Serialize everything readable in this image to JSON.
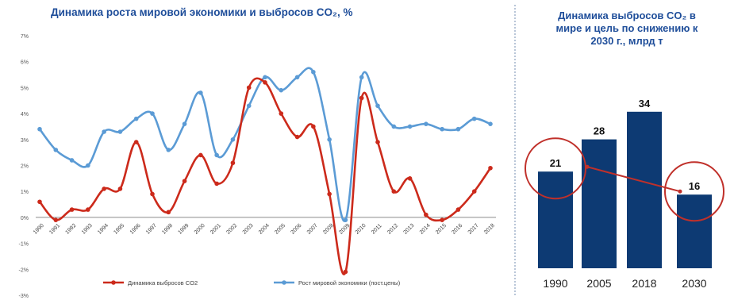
{
  "left": {
    "title": "Динамика роста мировой экономики и выбросов CO₂, %"
  },
  "right": {
    "title_lines": [
      "Динамика выбросов CO₂ в",
      "мире и цель по снижению к",
      "2030 г., млрд т"
    ]
  },
  "colors": {
    "emissions": "#cc2a1b",
    "growth": "#5b9bd5",
    "bar": "#0d3a73",
    "circle": "#c0302a",
    "title": "#1f4e9a"
  },
  "chart_data": [
    {
      "type": "line",
      "title": "Динамика роста мировой экономики и выбросов CO₂, %",
      "x": [
        "1990",
        "1991",
        "1992",
        "1993",
        "1994",
        "1995",
        "1996",
        "1997",
        "1998",
        "1999",
        "2000",
        "2001",
        "2002",
        "2003",
        "2004",
        "2005",
        "2006",
        "2007",
        "2008",
        "2009",
        "2010",
        "2011",
        "2012",
        "2013",
        "2014",
        "2015",
        "2016",
        "2017",
        "2018"
      ],
      "ylim": [
        -3,
        7
      ],
      "yticks": [
        "-3%",
        "-2%",
        "-1%",
        "0%",
        "1%",
        "2%",
        "3%",
        "4%",
        "5%",
        "6%",
        "7%"
      ],
      "legend_position": "bottom",
      "series": [
        {
          "name": "Динамика выбросов CO2",
          "values": [
            0.6,
            -0.1,
            0.3,
            0.3,
            1.1,
            1.1,
            2.9,
            0.9,
            0.2,
            1.4,
            2.4,
            1.3,
            2.1,
            5.0,
            5.2,
            4.0,
            3.1,
            3.5,
            0.9,
            -2.1,
            4.6,
            2.9,
            1.0,
            1.5,
            0.1,
            -0.1,
            0.3,
            1.0,
            1.9
          ]
        },
        {
          "name": "Рост мировой экономики (пост.цены)",
          "values": [
            3.4,
            2.6,
            2.2,
            2.0,
            3.3,
            3.3,
            3.8,
            4.0,
            2.6,
            3.6,
            4.8,
            2.4,
            3.0,
            4.3,
            5.4,
            4.9,
            5.4,
            5.6,
            3.0,
            -0.1,
            5.4,
            4.3,
            3.5,
            3.5,
            3.6,
            3.4,
            3.4,
            3.8,
            3.6
          ]
        }
      ]
    },
    {
      "type": "bar",
      "title": "Динамика выбросов CO₂ в мире и цель по снижению к 2030 г., млрд т",
      "categories": [
        "1990",
        "2005",
        "2018",
        "2030"
      ],
      "values": [
        21,
        28,
        34,
        16
      ],
      "data_labels": [
        "21",
        "28",
        "34",
        "16"
      ],
      "ylim": [
        0,
        40
      ],
      "annotations": [
        "circle around 1990 value",
        "circle around 2030 target",
        "line connecting 1990 and 2030"
      ]
    }
  ]
}
